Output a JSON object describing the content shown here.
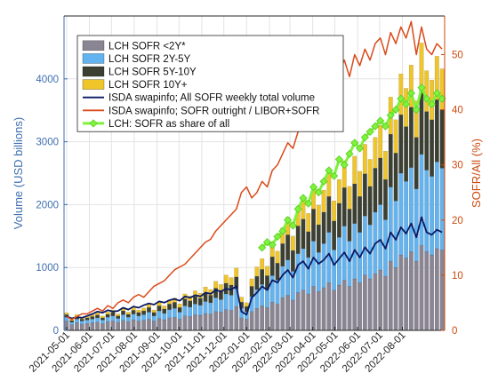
{
  "chart_data": {
    "type": "bar",
    "stacked": true,
    "x": [
      "2021-05-01",
      "2021-05-08",
      "2021-05-15",
      "2021-05-22",
      "2021-05-29",
      "2021-06-05",
      "2021-06-12",
      "2021-06-19",
      "2021-06-26",
      "2021-07-03",
      "2021-07-10",
      "2021-07-17",
      "2021-07-24",
      "2021-07-31",
      "2021-08-07",
      "2021-08-14",
      "2021-08-21",
      "2021-08-28",
      "2021-09-04",
      "2021-09-11",
      "2021-09-18",
      "2021-09-25",
      "2021-10-02",
      "2021-10-09",
      "2021-10-16",
      "2021-10-23",
      "2021-10-30",
      "2021-11-06",
      "2021-11-13",
      "2021-11-20",
      "2021-11-27",
      "2021-12-04",
      "2021-12-11",
      "2021-12-18",
      "2021-12-25",
      "2022-01-01",
      "2022-01-08",
      "2022-01-15",
      "2022-01-22",
      "2022-01-29",
      "2022-02-05",
      "2022-02-12",
      "2022-02-19",
      "2022-02-26",
      "2022-03-05",
      "2022-03-12",
      "2022-03-19",
      "2022-03-26",
      "2022-04-02",
      "2022-04-09",
      "2022-04-16",
      "2022-04-23",
      "2022-04-30",
      "2022-05-07",
      "2022-05-14",
      "2022-05-21",
      "2022-05-28",
      "2022-06-04",
      "2022-06-11",
      "2022-06-18",
      "2022-06-25",
      "2022-07-02",
      "2022-07-09",
      "2022-07-16",
      "2022-07-23",
      "2022-07-30",
      "2022-08-06",
      "2022-08-13",
      "2022-08-20",
      "2022-08-27",
      "2022-09-03",
      "2022-09-10",
      "2022-09-17",
      "2022-09-24"
    ],
    "xtick_labels": [
      "2021-05-01",
      "2021-06-01",
      "2021-07-01",
      "2021-08-01",
      "2021-09-01",
      "2021-10-01",
      "2021-11-01",
      "2021-12-01",
      "2022-01-01",
      "2022-02-01",
      "2022-03-01",
      "2022-04-01",
      "2022-05-01",
      "2022-06-01",
      "2022-07-01",
      "2022-08-01"
    ],
    "ylabel": "Volume (USD billions)",
    "ylabel_right": "SOFR/All (%)",
    "ylim": [
      0,
      5000
    ],
    "ylim_right": [
      0,
      57
    ],
    "yticks": [
      0,
      1000,
      2000,
      3000,
      4000
    ],
    "yticks_right": [
      0,
      10,
      20,
      30,
      40,
      50
    ],
    "grid": true,
    "legend_position": "top-left",
    "colors": {
      "lt2": "#8a8593",
      "y2_5": "#62b3ef",
      "y5_10": "#3b4032",
      "y10p": "#f0c52a",
      "isda_total": "#0a1a66",
      "isda_share": "#d94a1a",
      "lch_share": "#7ef23c",
      "left_axis": "#3f6fb0",
      "right_axis": "#cc4a10"
    },
    "series": [
      {
        "name": "LCH SOFR <2Y*",
        "key": "lt2",
        "kind": "bar",
        "values": [
          150,
          90,
          120,
          100,
          110,
          120,
          130,
          110,
          140,
          150,
          130,
          160,
          140,
          170,
          150,
          160,
          180,
          150,
          190,
          170,
          200,
          210,
          180,
          230,
          220,
          250,
          240,
          270,
          260,
          300,
          290,
          330,
          320,
          380,
          200,
          180,
          300,
          350,
          390,
          360,
          450,
          420,
          520,
          560,
          480,
          600,
          640,
          580,
          700,
          620,
          680,
          760,
          640,
          720,
          800,
          700,
          820,
          760,
          880,
          820,
          900,
          960,
          860,
          1100,
          1000,
          1200,
          1150,
          1250,
          1100,
          1350,
          1250,
          1200,
          1300,
          1280
        ]
      },
      {
        "name": "LCH SOFR 2Y-5Y",
        "key": "y2_5",
        "kind": "bar",
        "values": [
          60,
          40,
          60,
          50,
          55,
          60,
          70,
          55,
          70,
          80,
          60,
          90,
          70,
          90,
          80,
          90,
          110,
          80,
          120,
          100,
          130,
          140,
          110,
          160,
          150,
          170,
          160,
          190,
          180,
          220,
          200,
          250,
          240,
          280,
          150,
          120,
          240,
          300,
          340,
          300,
          420,
          380,
          500,
          560,
          460,
          620,
          660,
          580,
          720,
          620,
          700,
          800,
          640,
          760,
          860,
          720,
          880,
          800,
          940,
          860,
          980,
          1040,
          900,
          1180,
          1060,
          1300,
          1220,
          1340,
          1150,
          1450,
          1300,
          1250,
          1380,
          1300
        ]
      },
      {
        "name": "LCH SOFR 5Y-10Y",
        "key": "y5_10",
        "kind": "bar",
        "values": [
          40,
          25,
          40,
          30,
          35,
          40,
          45,
          35,
          45,
          55,
          40,
          60,
          45,
          60,
          55,
          60,
          75,
          55,
          80,
          70,
          90,
          95,
          75,
          110,
          100,
          120,
          110,
          130,
          120,
          150,
          140,
          170,
          160,
          190,
          100,
          80,
          160,
          210,
          240,
          210,
          300,
          270,
          360,
          400,
          330,
          440,
          470,
          410,
          510,
          440,
          500,
          570,
          460,
          540,
          610,
          510,
          630,
          570,
          670,
          610,
          700,
          740,
          640,
          840,
          760,
          930,
          870,
          960,
          820,
          1040,
          930,
          900,
          990,
          930
        ]
      },
      {
        "name": "LCH SOFR 10Y+",
        "key": "y10p",
        "kind": "bar",
        "values": [
          30,
          20,
          30,
          25,
          28,
          30,
          35,
          28,
          35,
          40,
          30,
          45,
          35,
          45,
          40,
          45,
          55,
          40,
          60,
          50,
          65,
          70,
          55,
          80,
          75,
          90,
          80,
          100,
          90,
          110,
          100,
          130,
          120,
          140,
          80,
          60,
          120,
          150,
          170,
          150,
          210,
          190,
          250,
          280,
          230,
          310,
          330,
          290,
          360,
          310,
          350,
          400,
          320,
          380,
          430,
          360,
          440,
          400,
          470,
          430,
          490,
          520,
          450,
          590,
          530,
          650,
          610,
          670,
          580,
          730,
          650,
          630,
          690,
          650
        ]
      },
      {
        "name": "ISDA swapinfo; All SOFR weekly total volume",
        "key": "isda_total",
        "kind": "line",
        "axis": "left",
        "values": [
          220,
          190,
          210,
          200,
          230,
          260,
          300,
          280,
          320,
          300,
          310,
          360,
          330,
          380,
          360,
          400,
          430,
          410,
          460,
          440,
          480,
          500,
          470,
          540,
          520,
          560,
          540,
          600,
          580,
          640,
          620,
          660,
          650,
          700,
          300,
          250,
          520,
          600,
          700,
          640,
          800,
          760,
          880,
          960,
          840,
          1040,
          1100,
          980,
          1160,
          1060,
          1120,
          1220,
          1040,
          1140,
          1240,
          1100,
          1280,
          1160,
          1320,
          1220,
          1380,
          1440,
          1300,
          1560,
          1440,
          1640,
          1540,
          1700,
          1480,
          1800,
          1560,
          1520,
          1600,
          1560
        ]
      },
      {
        "name": "ISDA swapinfo; SOFR outright / LIBOR+SOFR",
        "key": "isda_share",
        "kind": "line",
        "axis": "right",
        "values": [
          2.5,
          2.0,
          2.5,
          3.0,
          3.0,
          3.5,
          4.0,
          3.5,
          4.5,
          4.0,
          5.0,
          5.5,
          5.0,
          6.0,
          6.5,
          6.0,
          7.0,
          8.0,
          8.5,
          9.0,
          10.0,
          11.0,
          11.5,
          12.0,
          13.0,
          14.0,
          15.0,
          16.0,
          16.5,
          18.0,
          19.0,
          20.0,
          21.0,
          22.0,
          25.0,
          26.0,
          24.0,
          25.0,
          27.0,
          26.0,
          29.0,
          30.0,
          32.0,
          34.0,
          33.0,
          36.0,
          38.0,
          40.0,
          42.0,
          44.0,
          46.0,
          48.0,
          45.0,
          47.0,
          49.0,
          46.0,
          50.0,
          48.0,
          51.0,
          49.0,
          52.0,
          53.0,
          50.0,
          54.0,
          52.0,
          55.0,
          53.0,
          56.0,
          50.0,
          55.0,
          51.0,
          50.0,
          52.0,
          51.0
        ]
      },
      {
        "name": "LCH: SOFR as share of all",
        "key": "lch_share",
        "kind": "line",
        "axis": "right",
        "values": [
          null,
          null,
          null,
          null,
          null,
          null,
          null,
          null,
          null,
          null,
          null,
          null,
          null,
          null,
          null,
          null,
          null,
          null,
          null,
          null,
          null,
          null,
          null,
          null,
          null,
          null,
          null,
          null,
          null,
          null,
          null,
          null,
          null,
          null,
          null,
          null,
          null,
          null,
          15.0,
          16.0,
          15.5,
          17.0,
          18.0,
          20.0,
          19.0,
          22.0,
          24.0,
          23.0,
          26.0,
          25.0,
          27.0,
          29.0,
          28.0,
          31.0,
          30.0,
          32.0,
          34.0,
          33.0,
          35.0,
          36.0,
          37.0,
          38.0,
          37.0,
          39.0,
          40.0,
          42.0,
          41.0,
          43.0,
          40.0,
          44.0,
          42.0,
          41.0,
          43.0,
          42.0
        ]
      }
    ]
  }
}
